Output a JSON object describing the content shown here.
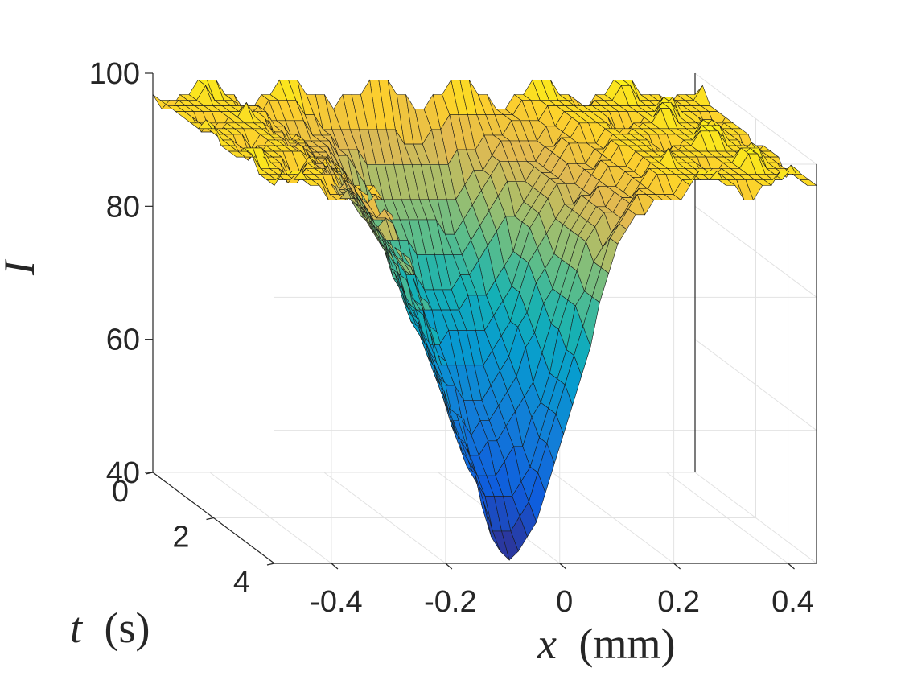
{
  "chart_data": {
    "type": "surface",
    "title": "",
    "xlabel_var": "x",
    "xlabel_unit": "(mm)",
    "ylabel_var": "t",
    "ylabel_unit": "(s)",
    "zlabel": "I",
    "xlim": [
      -0.5,
      0.45
    ],
    "ylim": [
      0,
      4
    ],
    "zlim": [
      40,
      100
    ],
    "xticks": [
      -0.4,
      -0.2,
      0,
      0.2,
      0.4
    ],
    "xtick_labels": [
      "-0.4",
      "-0.2",
      "0",
      "0.2",
      "0.4"
    ],
    "yticks": [
      0,
      2,
      4
    ],
    "ytick_labels": [
      "0",
      "2",
      "4"
    ],
    "zticks": [
      40,
      60,
      80,
      100
    ],
    "ztick_labels": [
      "40",
      "60",
      "80",
      "100"
    ],
    "grid": true,
    "colormap": "parula",
    "surface": {
      "description": "Intensity I(x,t): a dip centred near x = 0 whose depth grows with time from ~96 at t = 0 to ~40 at t = 4; flat plateau near 95-100 away from the dip.",
      "baseline": 97,
      "center_x_mm": -0.08,
      "min_intensity_at_t_end": 41,
      "width_mm_sigma": 0.11
    }
  }
}
